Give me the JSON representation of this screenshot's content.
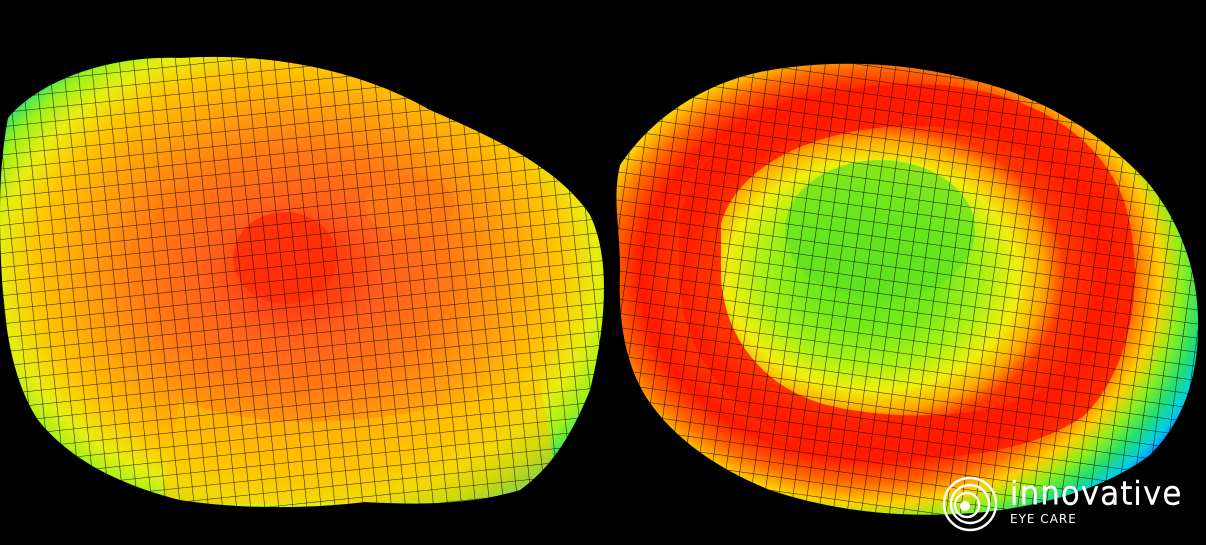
{
  "image": {
    "background_color": "#000000",
    "left_map": {
      "subject": "corneal-topography-3d-elevation-map"
    },
    "right_map": {
      "subject": "corneal-topography-3d-elevation-map"
    },
    "color_scale": [
      "#1e6cff",
      "#00d6e8",
      "#2ee36b",
      "#9bf21a",
      "#f6f20a",
      "#ffc400",
      "#ff8a00",
      "#ff4a10",
      "#ff1a00"
    ]
  },
  "logo": {
    "word": "innovative",
    "sub": "EYE CARE",
    "color": "#ffffff"
  }
}
